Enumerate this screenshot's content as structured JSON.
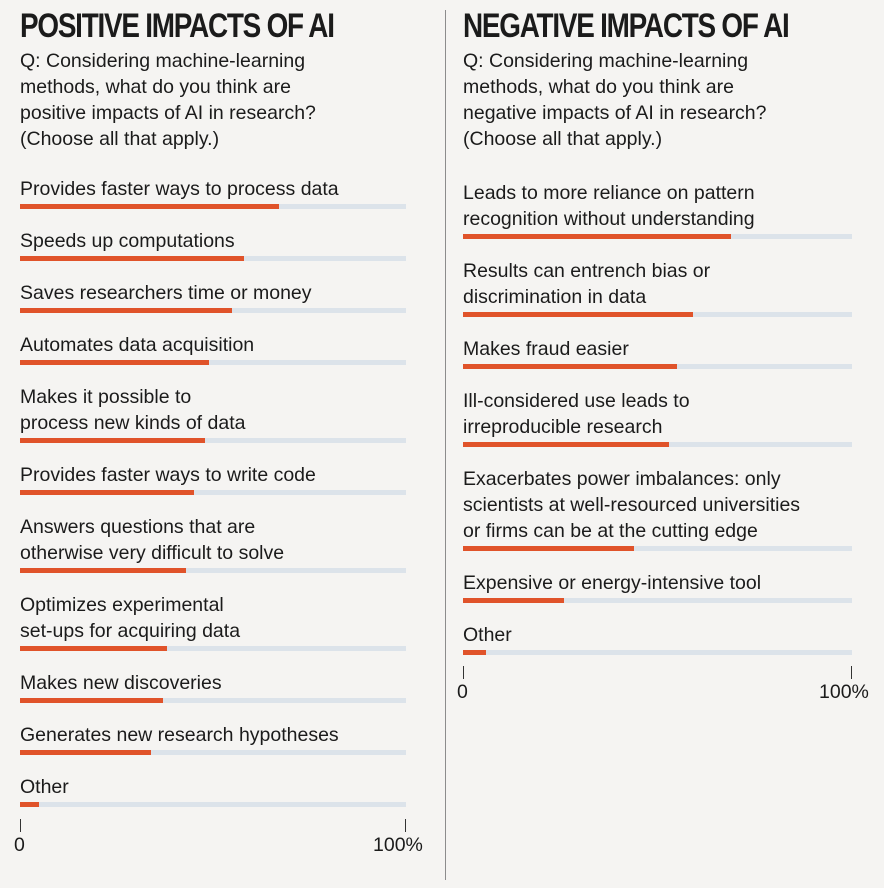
{
  "chart_data": [
    {
      "type": "bar",
      "orientation": "horizontal",
      "title": "POSITIVE IMPACTS OF AI",
      "question": "Q: Considering machine-learning\nmethods, what do you think are\npositive impacts of AI in research?\n(Choose all that apply.)",
      "categories": [
        "Provides faster ways to process data",
        "Speeds up computations",
        "Saves researchers time or money",
        "Automates data acquisition",
        "Makes it possible to\nprocess new kinds of data",
        "Provides faster ways to write code",
        "Answers questions that are\notherwise very difficult to solve",
        "Optimizes experimental\nset-ups for acquiring data",
        "Makes new discoveries",
        "Generates new research hypotheses",
        "Other"
      ],
      "values": [
        67,
        58,
        55,
        49,
        48,
        45,
        43,
        38,
        37,
        34,
        5
      ],
      "xlim": [
        0,
        100
      ],
      "xtick_labels": [
        "0",
        "100%"
      ],
      "bar_color": "#e0532a",
      "track_color": "#dce3ea"
    },
    {
      "type": "bar",
      "orientation": "horizontal",
      "title": "NEGATIVE IMPACTS OF AI",
      "question": "Q: Considering machine-learning\nmethods, what do you think are\nnegative impacts of AI in research?\n(Choose all that apply.)",
      "categories": [
        "Leads to more reliance on pattern\nrecognition without understanding",
        "Results can entrench bias or\ndiscrimination in data",
        "Makes fraud easier",
        "Ill-considered use leads to\nirreproducible research",
        "Exacerbates power imbalances: only\nscientists at well-resourced universities\nor firms can be at the cutting edge",
        "Expensive or energy-intensive tool",
        "Other"
      ],
      "values": [
        69,
        59,
        55,
        53,
        44,
        26,
        6
      ],
      "xlim": [
        0,
        100
      ],
      "xtick_labels": [
        "0",
        "100%"
      ],
      "bar_color": "#e0532a",
      "track_color": "#dce3ea"
    }
  ]
}
